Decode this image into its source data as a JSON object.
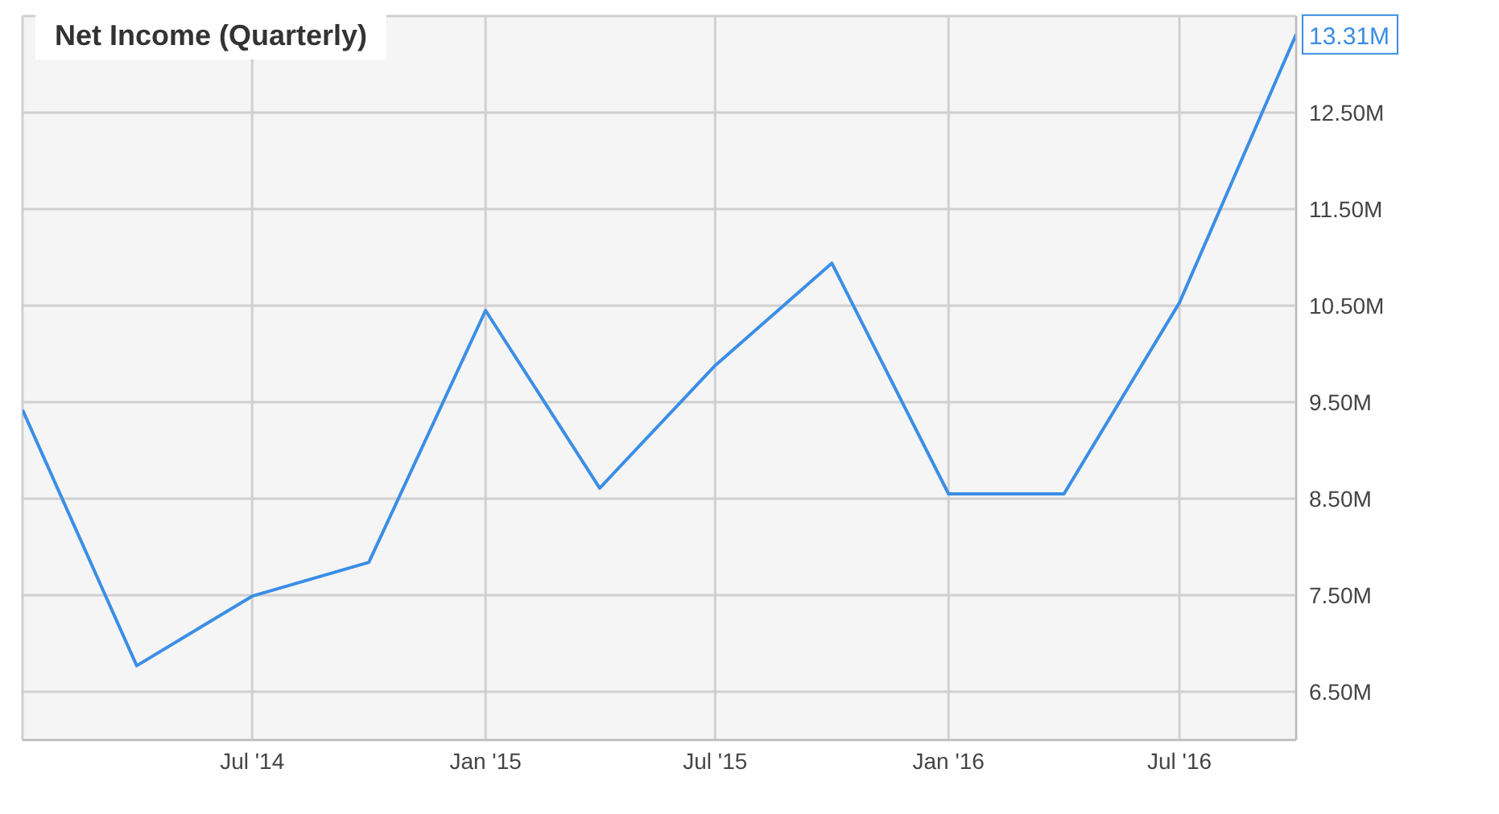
{
  "chart_data": {
    "type": "line",
    "title": "Net Income (Quarterly)",
    "x": [
      "2014-01",
      "2014-04",
      "2014-07",
      "2014-10",
      "2015-01",
      "2015-04",
      "2015-07",
      "2015-10",
      "2016-01",
      "2016-04",
      "2016-07",
      "2016-10"
    ],
    "series": [
      {
        "color": "#3a8ee6",
        "values": [
          9.42,
          6.77,
          7.49,
          7.84,
          10.45,
          8.61,
          9.88,
          10.94,
          8.55,
          8.55,
          10.53,
          13.31
        ],
        "value_labels": [
          null,
          null,
          null,
          null,
          null,
          null,
          null,
          null,
          null,
          null,
          null,
          "13.31M"
        ]
      }
    ],
    "xlim": [
      "2014-01",
      "2016-10"
    ],
    "xticks": [
      {
        "value": "2014-07",
        "label": "Jul '14"
      },
      {
        "value": "2015-01",
        "label": "Jan '15"
      },
      {
        "value": "2015-07",
        "label": "Jul '15"
      },
      {
        "value": "2016-01",
        "label": "Jan '16"
      },
      {
        "value": "2016-07",
        "label": "Jul '16"
      }
    ],
    "ylim": [
      6.0,
      13.5
    ],
    "yticks": [
      {
        "value": 6.5,
        "label": "6.50M"
      },
      {
        "value": 7.5,
        "label": "7.50M"
      },
      {
        "value": 8.5,
        "label": "8.50M"
      },
      {
        "value": 9.5,
        "label": "9.50M"
      },
      {
        "value": 10.5,
        "label": "10.50M"
      },
      {
        "value": 11.5,
        "label": "11.50M"
      },
      {
        "value": 12.5,
        "label": "12.50M"
      }
    ],
    "grid": true,
    "marker": "none",
    "line_style": "solid"
  }
}
